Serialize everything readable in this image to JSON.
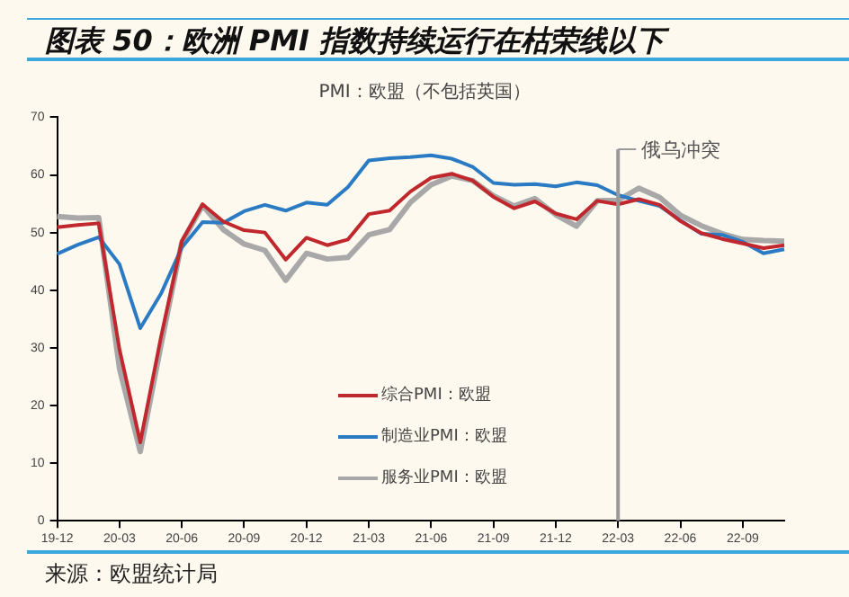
{
  "chart_data": {
    "type": "line",
    "title": "图表 50：欧洲 PMI 指数持续运行在枯荣线以下",
    "subtitle": "PMI：欧盟（不包括英国）",
    "categories": [
      "19-12",
      null,
      null,
      "20-03",
      null,
      null,
      "20-06",
      null,
      null,
      "20-09",
      null,
      null,
      "20-12",
      null,
      null,
      "21-03",
      null,
      null,
      "21-06",
      null,
      null,
      "21-09",
      null,
      null,
      "21-12",
      null,
      null,
      "22-03",
      null,
      null,
      "22-06",
      null,
      null,
      "22-09",
      null,
      null
    ],
    "series": [
      {
        "name": "综合PMI：欧盟",
        "color": "#c0282d",
        "values": [
          50.9,
          51.3,
          51.6,
          29.7,
          13.6,
          31.9,
          48.5,
          54.9,
          51.9,
          50.4,
          50.0,
          45.3,
          49.1,
          47.8,
          48.8,
          53.2,
          53.8,
          57.1,
          59.5,
          60.2,
          59.0,
          56.2,
          54.2,
          55.4,
          53.3,
          52.3,
          55.5,
          54.9,
          55.8,
          54.8,
          52.0,
          49.9,
          48.9,
          48.1,
          47.3,
          47.8
        ]
      },
      {
        "name": "制造业PMI：欧盟",
        "color": "#2a7bc4",
        "values": [
          46.3,
          47.9,
          49.2,
          44.5,
          33.4,
          39.4,
          47.4,
          51.8,
          51.7,
          53.7,
          54.8,
          53.8,
          55.2,
          54.8,
          57.9,
          62.5,
          62.9,
          63.1,
          63.4,
          62.8,
          61.4,
          58.6,
          58.3,
          58.4,
          58.0,
          58.7,
          58.2,
          56.5,
          55.5,
          54.6,
          52.1,
          49.8,
          49.6,
          48.4,
          46.4,
          47.1
        ]
      },
      {
        "name": "服务业PMI：欧盟",
        "color": "#a8a8a8",
        "values": [
          52.8,
          52.5,
          52.6,
          26.4,
          12.0,
          30.5,
          48.3,
          54.7,
          50.5,
          48.0,
          46.9,
          41.7,
          46.4,
          45.4,
          45.7,
          49.6,
          50.5,
          55.2,
          58.3,
          59.8,
          59.0,
          56.4,
          54.6,
          55.9,
          53.1,
          51.1,
          55.5,
          55.6,
          57.7,
          56.1,
          53.0,
          51.2,
          49.8,
          48.8,
          48.6,
          48.5
        ]
      }
    ],
    "ylim": [
      0,
      70
    ],
    "yticks": [
      0,
      10,
      20,
      30,
      40,
      50,
      60,
      70
    ],
    "ref_lines": [
      {
        "axis": "x",
        "value": "22-03",
        "label": "俄乌冲突",
        "color": "#9a9a9a"
      }
    ],
    "annotations": [
      "来源：欧盟统计局"
    ],
    "grid": false,
    "legend": "bottom",
    "marker": "none",
    "line_style": "solid"
  }
}
